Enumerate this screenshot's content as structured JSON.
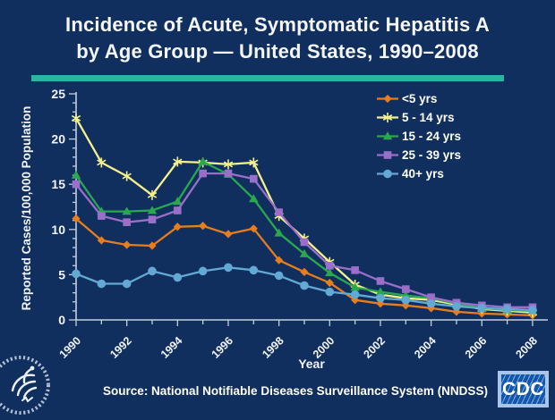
{
  "slide": {
    "title_line1": "Incidence of Acute, Symptomatic Hepatitis A",
    "title_line2": "by Age Group — United States, 1990–2008",
    "source": "Source: National Notifiable Diseases Surveillance System (NNDSS)",
    "cdc_logo_text": "CDC",
    "colors": {
      "background": "#102f5e",
      "divider_teal": "#2cb4a3",
      "text": "#ffffff",
      "axis": "#c3cfe0"
    }
  },
  "chart_data": {
    "type": "line",
    "title": "",
    "xlabel": "Year",
    "ylabel": "Reported Cases/100,000 Population",
    "x": [
      1990,
      1991,
      1992,
      1993,
      1994,
      1995,
      1996,
      1997,
      1998,
      1999,
      2000,
      2001,
      2002,
      2003,
      2004,
      2005,
      2006,
      2007,
      2008
    ],
    "x_tick_labels": [
      "1990",
      "1992",
      "1994",
      "1996",
      "1998",
      "2000",
      "2002",
      "2004",
      "2006",
      "2008"
    ],
    "x_label_every": 2,
    "y_ticks": [
      0,
      5,
      10,
      15,
      20,
      25
    ],
    "y_minor_tick_every": 1,
    "ylim": [
      0,
      25
    ],
    "grid": false,
    "legend_position": "top-right",
    "series": [
      {
        "name": "<5 yrs",
        "color": "#e87d1e",
        "marker": "diamond",
        "values": [
          11.2,
          8.8,
          8.3,
          8.2,
          10.3,
          10.4,
          9.5,
          10.1,
          6.6,
          5.3,
          4.1,
          2.2,
          1.8,
          1.6,
          1.3,
          0.9,
          0.7,
          0.6,
          0.5
        ]
      },
      {
        "name": "5 - 14 yrs",
        "color": "#f5f28b",
        "marker": "star",
        "values": [
          22.3,
          17.4,
          15.9,
          13.8,
          17.5,
          17.4,
          17.2,
          17.4,
          11.5,
          9.0,
          6.4,
          3.9,
          2.8,
          2.4,
          2.2,
          1.7,
          1.2,
          1.0,
          0.8
        ]
      },
      {
        "name": "15 - 24 yrs",
        "color": "#2aa84e",
        "marker": "triangle",
        "values": [
          16.0,
          12.0,
          12.0,
          12.1,
          13.1,
          17.5,
          16.1,
          13.4,
          9.6,
          7.3,
          5.2,
          3.6,
          3.1,
          2.7,
          2.4,
          1.8,
          1.3,
          1.1,
          1.0
        ]
      },
      {
        "name": "25 - 39 yrs",
        "color": "#9a6fc9",
        "marker": "square",
        "values": [
          15.0,
          11.5,
          10.8,
          11.1,
          12.1,
          16.2,
          16.2,
          15.6,
          11.9,
          8.6,
          6.0,
          5.5,
          4.3,
          3.4,
          2.5,
          1.9,
          1.6,
          1.4,
          1.4
        ]
      },
      {
        "name": "40+ yrs",
        "color": "#63a9d4",
        "marker": "circle",
        "values": [
          5.1,
          4.0,
          4.0,
          5.4,
          4.7,
          5.4,
          5.8,
          5.5,
          4.9,
          3.8,
          3.1,
          2.8,
          2.4,
          2.2,
          1.8,
          1.5,
          1.3,
          1.2,
          1.1
        ]
      }
    ]
  }
}
